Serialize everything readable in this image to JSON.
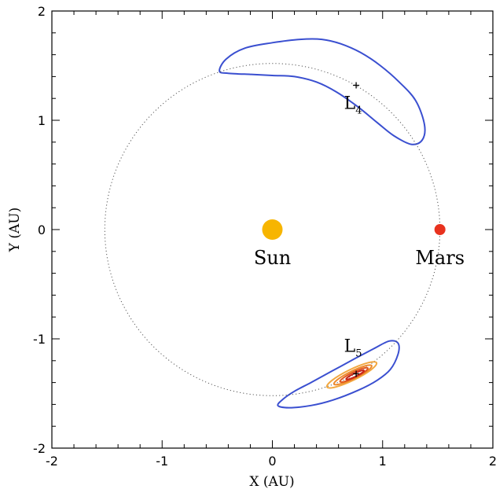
{
  "chart_data": {
    "type": "scatter",
    "title": "",
    "xlabel": "X (AU)",
    "ylabel": "Y (AU)",
    "xlim": [
      -2,
      2
    ],
    "ylim": [
      -2,
      2
    ],
    "xticks": [
      -2,
      -1,
      0,
      1,
      2
    ],
    "yticks": [
      -2,
      -1,
      0,
      1,
      2
    ],
    "xtick_labels": [
      "-2",
      "-1",
      "0",
      "1",
      "2"
    ],
    "ytick_labels": [
      "-2",
      "-1",
      "0",
      "1",
      "2"
    ],
    "grid": false,
    "orbit": {
      "radius": 1.52,
      "style": "dotted"
    },
    "bodies": [
      {
        "name": "Sun",
        "x": 0.0,
        "y": 0.0,
        "color": "#f7b500"
      },
      {
        "name": "Mars",
        "x": 1.52,
        "y": 0.0,
        "color": "#e8321e"
      }
    ],
    "lagrange_points": [
      {
        "label": "L",
        "subscript": "4",
        "x": 0.76,
        "y": 1.32
      },
      {
        "label": "L",
        "subscript": "5",
        "x": 0.76,
        "y": -1.32
      }
    ],
    "regions": [
      {
        "name": "L4 stability region",
        "color": "#3a4fd0",
        "points": [
          [
            -0.48,
            1.45
          ],
          [
            -0.42,
            1.56
          ],
          [
            -0.25,
            1.66
          ],
          [
            0.0,
            1.71
          ],
          [
            0.25,
            1.74
          ],
          [
            0.45,
            1.74
          ],
          [
            0.62,
            1.7
          ],
          [
            0.8,
            1.62
          ],
          [
            0.98,
            1.5
          ],
          [
            1.15,
            1.35
          ],
          [
            1.3,
            1.18
          ],
          [
            1.38,
            0.96
          ],
          [
            1.36,
            0.82
          ],
          [
            1.26,
            0.78
          ],
          [
            1.1,
            0.86
          ],
          [
            0.95,
            0.98
          ],
          [
            0.78,
            1.12
          ],
          [
            0.58,
            1.26
          ],
          [
            0.4,
            1.35
          ],
          [
            0.2,
            1.4
          ],
          [
            0.0,
            1.41
          ],
          [
            -0.2,
            1.42
          ],
          [
            -0.4,
            1.43
          ]
        ]
      },
      {
        "name": "L5 stability region",
        "color": "#3a4fd0",
        "points": [
          [
            0.1,
            -1.55
          ],
          [
            0.05,
            -1.61
          ],
          [
            0.15,
            -1.63
          ],
          [
            0.35,
            -1.61
          ],
          [
            0.55,
            -1.56
          ],
          [
            0.78,
            -1.47
          ],
          [
            0.95,
            -1.38
          ],
          [
            1.07,
            -1.28
          ],
          [
            1.14,
            -1.14
          ],
          [
            1.14,
            -1.04
          ],
          [
            1.06,
            -1.02
          ],
          [
            0.92,
            -1.09
          ],
          [
            0.75,
            -1.18
          ],
          [
            0.55,
            -1.29
          ],
          [
            0.35,
            -1.4
          ],
          [
            0.2,
            -1.48
          ]
        ]
      }
    ],
    "contours": [
      {
        "cx": 0.72,
        "cy": -1.33,
        "rx": 0.25,
        "ry": 0.05,
        "angle_deg": 26,
        "color": "#f2a840"
      },
      {
        "cx": 0.73,
        "cy": -1.33,
        "rx": 0.19,
        "ry": 0.035,
        "angle_deg": 26,
        "color": "#ed8a2e"
      },
      {
        "cx": 0.74,
        "cy": -1.33,
        "rx": 0.14,
        "ry": 0.025,
        "angle_deg": 26,
        "color": "#e0561e"
      },
      {
        "cx": 0.75,
        "cy": -1.33,
        "rx": 0.09,
        "ry": 0.015,
        "angle_deg": 26,
        "color": "#c8261a"
      }
    ]
  }
}
